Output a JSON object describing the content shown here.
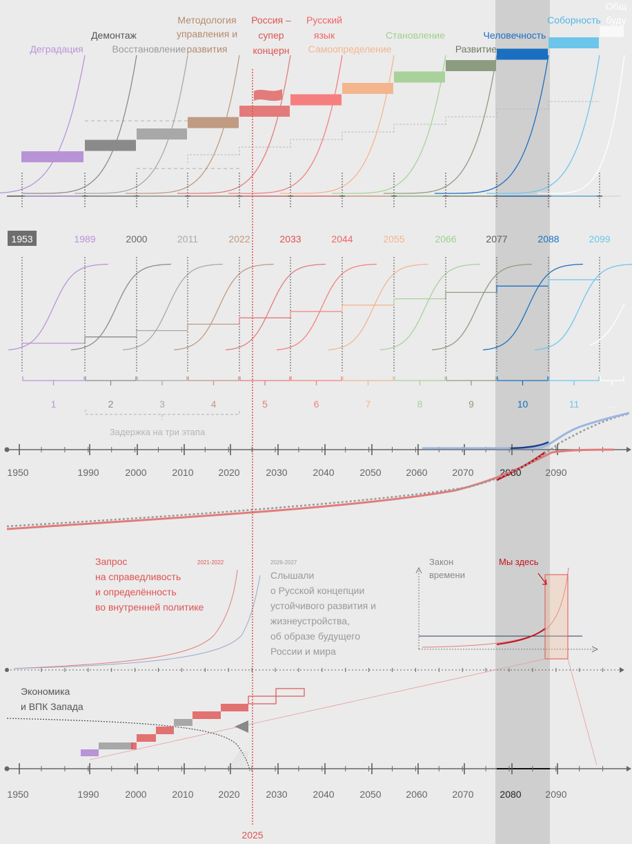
{
  "colors": {
    "background": "#ebebeb",
    "shade": "#cfcfcf",
    "marker_line": "#e05252",
    "axis": "#666666",
    "dashed": "#bbbbbb",
    "stages": [
      "#b894d6",
      "#8a8a8a",
      "#a8a8a8",
      "#c09a82",
      "#e37b7b",
      "#f57f7f",
      "#f4b58e",
      "#a8d29a",
      "#8c9c80",
      "#1a6fc0",
      "#6cc6ec",
      "#ffffff"
    ]
  },
  "top_section": {
    "year_badge": "1953",
    "stage_titles": [
      {
        "lines": [
          "Деградация"
        ],
        "color": "#b894d6"
      },
      {
        "lines": [
          "Демонтаж"
        ],
        "color": "#555555"
      },
      {
        "lines": [
          "Восстановление"
        ],
        "color": "#9a9a9a"
      },
      {
        "lines": [
          "Методология",
          "управления и",
          "развития"
        ],
        "color": "#b48a6e"
      },
      {
        "lines": [
          "Россия –",
          "супер",
          "концерн"
        ],
        "color": "#e05252"
      },
      {
        "lines": [
          "Русский",
          "язык"
        ],
        "color": "#f06464"
      },
      {
        "lines": [
          "Самоопределение"
        ],
        "color": "#f4b58e"
      },
      {
        "lines": [
          "Становление"
        ],
        "color": "#9fd08e"
      },
      {
        "lines": [
          "Развитие"
        ],
        "color": "#6d7a63"
      },
      {
        "lines": [
          "Человечность"
        ],
        "color": "#1a6fc0"
      },
      {
        "lines": [
          "Соборность"
        ],
        "color": "#4fb8e6"
      },
      {
        "lines": [
          "Общ",
          "буду"
        ],
        "color": "#ffffff"
      }
    ],
    "boundary_years": [
      {
        "label": "1989",
        "color": "#b894d6"
      },
      {
        "label": "2000",
        "color": "#666666"
      },
      {
        "label": "2011",
        "color": "#aaaaaa"
      },
      {
        "label": "2022",
        "color": "#c09a82"
      },
      {
        "label": "2033",
        "color": "#e05252"
      },
      {
        "label": "2044",
        "color": "#f06464"
      },
      {
        "label": "2055",
        "color": "#f4b58e"
      },
      {
        "label": "2066",
        "color": "#9fd08e"
      },
      {
        "label": "2077",
        "color": "#555f4c"
      },
      {
        "label": "2088",
        "color": "#1a6fc0"
      },
      {
        "label": "2099",
        "color": "#6cc6ec"
      }
    ]
  },
  "stages_row": {
    "numbers": [
      "1",
      "2",
      "3",
      "4",
      "5",
      "6",
      "7",
      "8",
      "9",
      "10",
      "11",
      "..."
    ],
    "delay_label": "Задержка на три этапа"
  },
  "timeline": {
    "year_labels": [
      "1950",
      "1990",
      "2000",
      "2010",
      "2020",
      "2030",
      "2040",
      "2050",
      "2060",
      "2070",
      "2080",
      "2090"
    ]
  },
  "annotations": {
    "request_text": [
      "Запрос",
      "на справедливость",
      "и определённость",
      "во внутренней политике"
    ],
    "request_years": "2021-2022",
    "heard_years": "2026-2027",
    "heard_text": [
      "Слышали",
      "о Русской концепции",
      "устойчивого развития и",
      "жизнеустройства,",
      "об образе будущего",
      "России и мира"
    ],
    "law_of_time": [
      "Закон",
      "времени"
    ],
    "we_are_here": "Мы здесь",
    "west_label": [
      "Экономика",
      "и ВПК Запада"
    ],
    "marker_year": "2025"
  }
}
